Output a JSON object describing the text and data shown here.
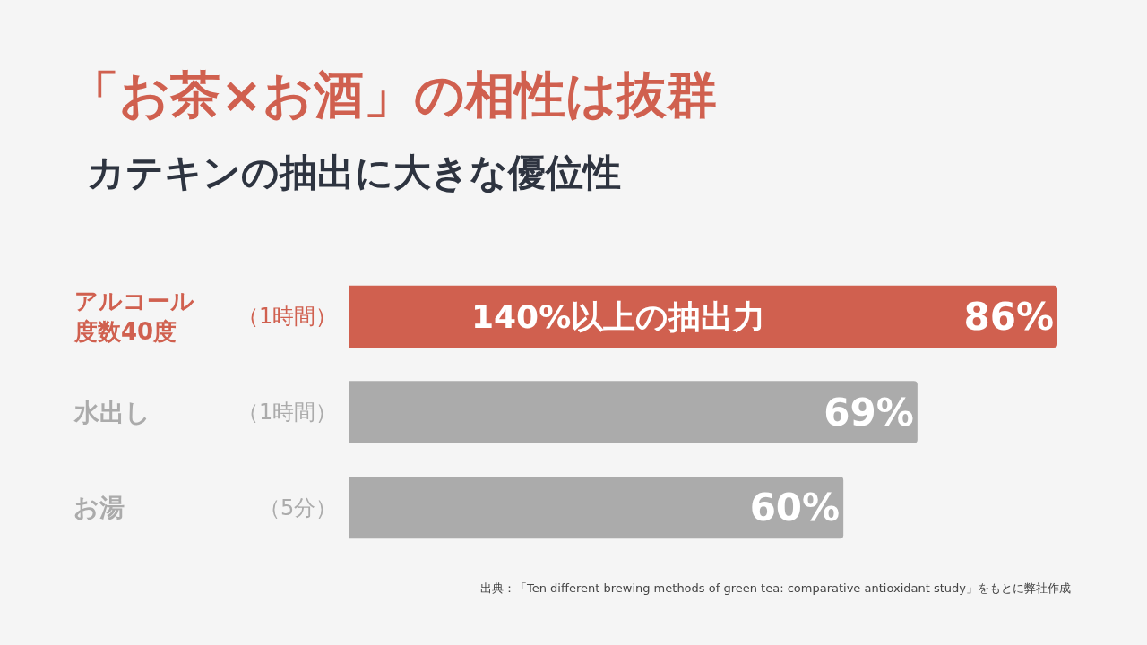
{
  "chart_data": {
    "type": "bar",
    "orientation": "horizontal",
    "title": "「お茶×お酒」の相性は抜群",
    "subtitle": "カテキンの抽出に大きな優位性",
    "categories": [
      "アルコール度数40度",
      "水出し",
      "お湯"
    ],
    "value_labels": [
      "86%",
      "69%",
      "60%"
    ],
    "values": [
      86,
      69,
      60
    ],
    "colors": [
      "#d0604f",
      "#ababab",
      "#ababab"
    ],
    "annotations": [
      "（1時間）",
      "（1時間）",
      "（5分）",
      "140%以上の抽出力",
      "出典：「Ten different brewing methods of green tea: comparative antioxidant study」をもとに弊社作成"
    ]
  }
}
